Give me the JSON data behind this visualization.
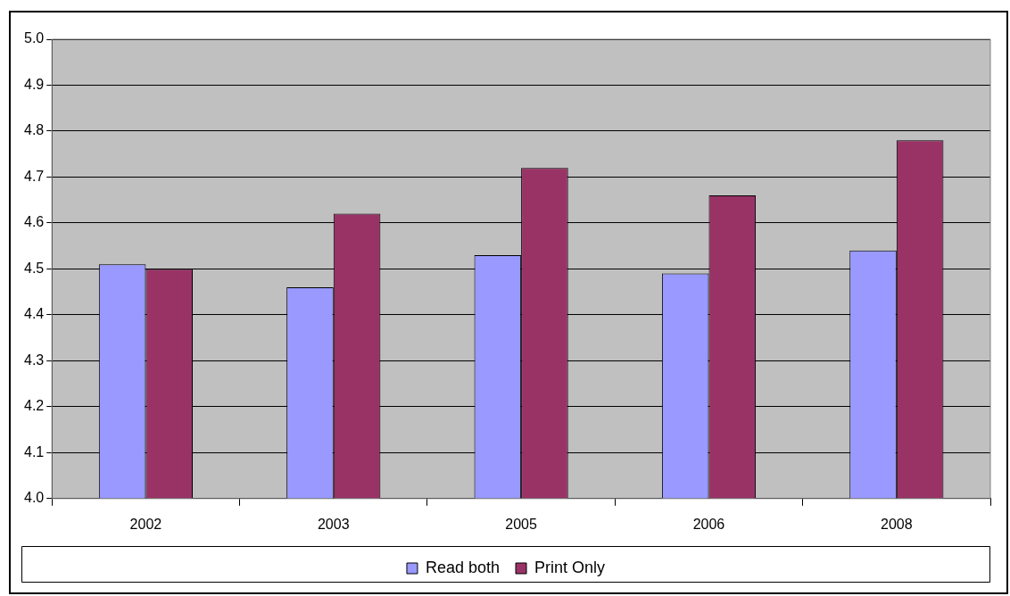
{
  "chart_data": {
    "type": "bar",
    "categories": [
      "2002",
      "2003",
      "2005",
      "2006",
      "2008"
    ],
    "series": [
      {
        "name": "Read both",
        "color": "#9999ff",
        "values": [
          4.51,
          4.46,
          4.53,
          4.49,
          4.54
        ]
      },
      {
        "name": "Print Only",
        "color": "#993366",
        "values": [
          4.5,
          4.62,
          4.72,
          4.66,
          4.78
        ]
      }
    ],
    "ylim": [
      4.0,
      5.0
    ],
    "yticks": [
      {
        "value": 4.0,
        "label": "4.0"
      },
      {
        "value": 4.1,
        "label": "4.1"
      },
      {
        "value": 4.2,
        "label": "4.2"
      },
      {
        "value": 4.3,
        "label": "4.3"
      },
      {
        "value": 4.4,
        "label": "4.4"
      },
      {
        "value": 4.5,
        "label": "4.5"
      },
      {
        "value": 4.6,
        "label": "4.6"
      },
      {
        "value": 4.7,
        "label": "4.7"
      },
      {
        "value": 4.8,
        "label": "4.8"
      },
      {
        "value": 4.9,
        "label": "4.9"
      },
      {
        "value": 5.0,
        "label": "5.0"
      }
    ],
    "grid": "y",
    "legend": "bottom"
  }
}
